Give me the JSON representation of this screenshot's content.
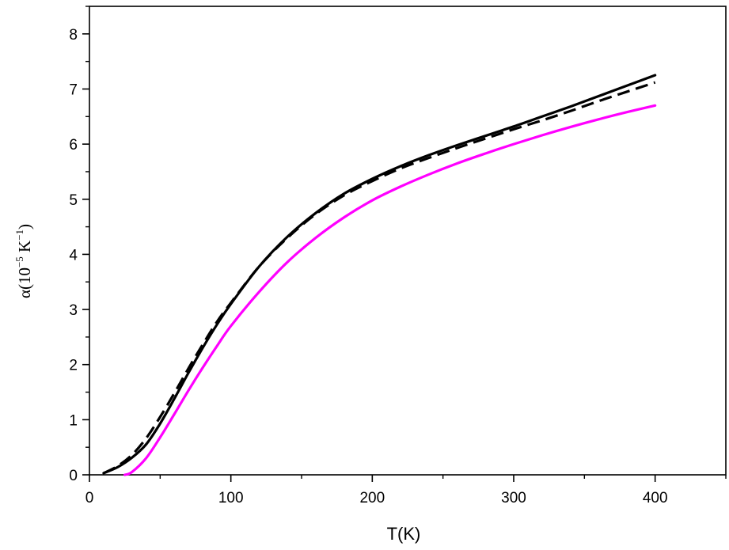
{
  "chart_data": {
    "type": "line",
    "xlabel": "T(K)",
    "ylabel": {
      "prefix": "α(10",
      "exp1": "−5",
      "mid": " K",
      "exp2": "−1",
      "suffix": ")"
    },
    "xlim": [
      0,
      450
    ],
    "ylim": [
      0,
      8.5
    ],
    "xticks": [
      0,
      100,
      200,
      300,
      400
    ],
    "yticks": [
      0,
      1,
      2,
      3,
      4,
      5,
      6,
      7,
      8
    ],
    "x_minor_step": 50,
    "y_minor_step": 0.5,
    "grid": false,
    "legend": "none",
    "series": [
      {
        "color": "#000000",
        "style": "solid",
        "x": [
          10,
          20,
          30,
          40,
          50,
          60,
          70,
          80,
          90,
          100,
          120,
          140,
          160,
          180,
          200,
          220,
          240,
          260,
          280,
          300,
          320,
          340,
          360,
          380,
          400
        ],
        "y": [
          0.03,
          0.14,
          0.31,
          0.55,
          0.93,
          1.38,
          1.85,
          2.3,
          2.72,
          3.1,
          3.78,
          4.32,
          4.75,
          5.1,
          5.37,
          5.6,
          5.8,
          5.98,
          6.15,
          6.32,
          6.5,
          6.68,
          6.87,
          7.06,
          7.25
        ]
      },
      {
        "color": "#000000",
        "style": "dashed",
        "x": [
          10,
          20,
          30,
          40,
          50,
          60,
          70,
          80,
          90,
          100,
          120,
          140,
          160,
          180,
          200,
          220,
          240,
          260,
          280,
          300,
          320,
          340,
          360,
          380,
          400
        ],
        "y": [
          0.03,
          0.16,
          0.36,
          0.66,
          1.05,
          1.48,
          1.93,
          2.36,
          2.77,
          3.12,
          3.78,
          4.3,
          4.73,
          5.07,
          5.33,
          5.56,
          5.75,
          5.93,
          6.1,
          6.27,
          6.43,
          6.6,
          6.78,
          6.95,
          7.12
        ]
      },
      {
        "color": "#ff00ff",
        "style": "solid",
        "x": [
          25,
          30,
          40,
          50,
          60,
          70,
          80,
          90,
          100,
          120,
          140,
          160,
          180,
          200,
          220,
          240,
          260,
          280,
          300,
          320,
          340,
          360,
          380,
          400
        ],
        "y": [
          0.0,
          0.05,
          0.3,
          0.68,
          1.1,
          1.53,
          1.94,
          2.33,
          2.7,
          3.32,
          3.86,
          4.3,
          4.67,
          4.98,
          5.23,
          5.45,
          5.65,
          5.83,
          6.0,
          6.16,
          6.31,
          6.45,
          6.58,
          6.7
        ]
      }
    ]
  }
}
